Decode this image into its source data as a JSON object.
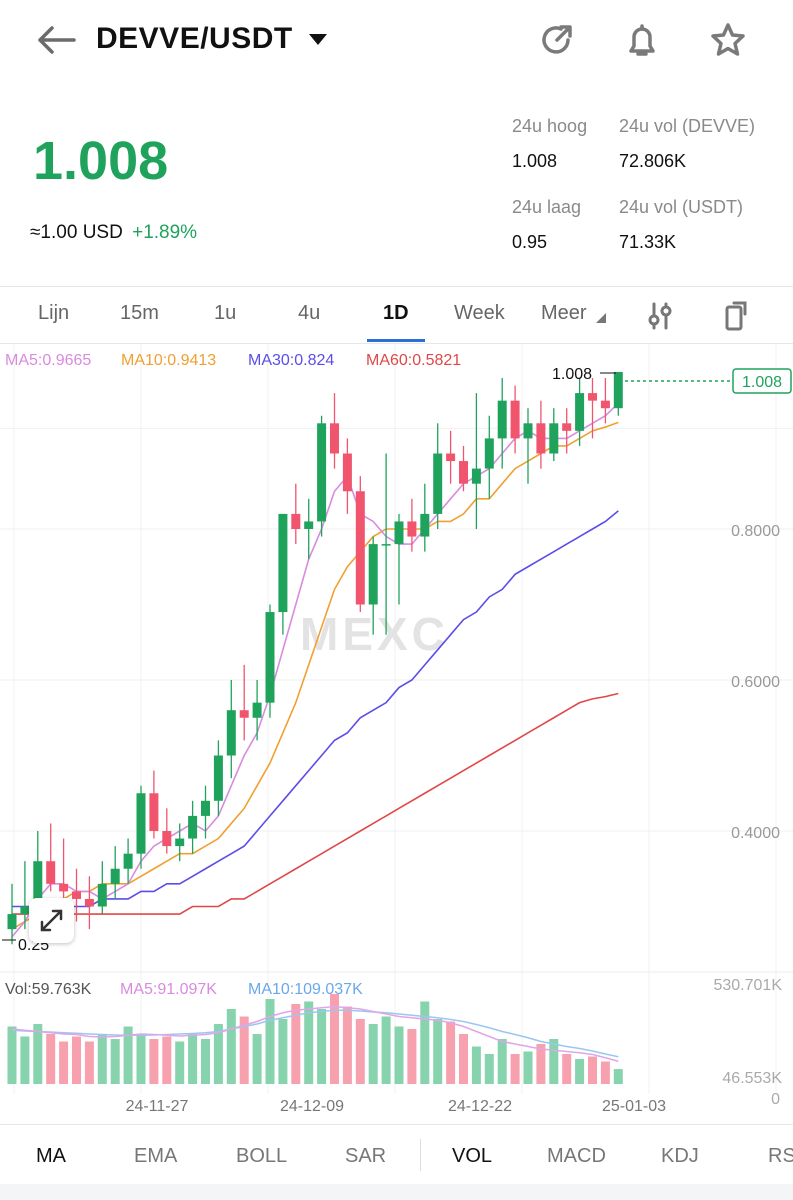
{
  "header": {
    "pair": "DEVVE/USDT"
  },
  "price": {
    "last": "1.008",
    "usd_prefix": "≈1.00",
    "usd_unit": "USD",
    "change_pct": "+1.89%"
  },
  "stats": {
    "high_label": "24u hoog",
    "high_value": "1.008",
    "vol_base_label": "24u vol (DEVVE)",
    "vol_base_value": "72.806K",
    "low_label": "24u laag",
    "low_value": "0.95",
    "vol_quote_label": "24u vol  (USDT)",
    "vol_quote_value": "71.33K"
  },
  "timeframes": [
    "Lijn",
    "15m",
    "1u",
    "4u",
    "1D",
    "Week",
    "Meer"
  ],
  "active_timeframe": "1D",
  "ma_legend": {
    "ma5": "MA5:0.9665",
    "ma10": "MA10:0.9413",
    "ma30": "MA30:0.824",
    "ma60": "MA60:0.5821"
  },
  "vol_legend": {
    "vol": "Vol:59.763K",
    "ma5": "MA5:91.097K",
    "ma10": "MA10:109.037K"
  },
  "colors": {
    "up": "#1fa35c",
    "down": "#f0556d",
    "ma5": "#d98be0",
    "ma10": "#f0a030",
    "ma30": "#5b4de8",
    "ma60": "#e04848"
  },
  "price_axis": [
    "0.8000",
    "0.6000",
    "0.4000"
  ],
  "vol_axis": [
    "530.701K",
    "46.553K",
    "0"
  ],
  "current_price_tag": "1.008",
  "high_marker": "1.008",
  "low_marker": "0.25",
  "watermark": "MEXC",
  "date_axis": [
    "24-11-27",
    "24-12-09",
    "24-12-22",
    "25-01-03"
  ],
  "indicators": [
    "MA",
    "EMA",
    "BOLL",
    "SAR",
    "VOL",
    "MACD",
    "KDJ",
    "RS"
  ],
  "active_indicators": [
    "MA",
    "VOL"
  ],
  "chart_data": {
    "type": "candlestick",
    "y_axis_ticks": [
      0.4,
      0.6,
      0.8
    ],
    "candles": [
      {
        "o": 0.27,
        "h": 0.33,
        "l": 0.25,
        "c": 0.29
      },
      {
        "o": 0.29,
        "h": 0.36,
        "l": 0.27,
        "c": 0.3
      },
      {
        "o": 0.3,
        "h": 0.4,
        "l": 0.28,
        "c": 0.36
      },
      {
        "o": 0.36,
        "h": 0.41,
        "l": 0.32,
        "c": 0.33
      },
      {
        "o": 0.33,
        "h": 0.39,
        "l": 0.3,
        "c": 0.32
      },
      {
        "o": 0.32,
        "h": 0.35,
        "l": 0.28,
        "c": 0.31
      },
      {
        "o": 0.31,
        "h": 0.34,
        "l": 0.27,
        "c": 0.3
      },
      {
        "o": 0.3,
        "h": 0.36,
        "l": 0.29,
        "c": 0.33
      },
      {
        "o": 0.33,
        "h": 0.38,
        "l": 0.31,
        "c": 0.35
      },
      {
        "o": 0.35,
        "h": 0.39,
        "l": 0.33,
        "c": 0.37
      },
      {
        "o": 0.37,
        "h": 0.46,
        "l": 0.35,
        "c": 0.45
      },
      {
        "o": 0.45,
        "h": 0.48,
        "l": 0.39,
        "c": 0.4
      },
      {
        "o": 0.4,
        "h": 0.43,
        "l": 0.37,
        "c": 0.38
      },
      {
        "o": 0.38,
        "h": 0.41,
        "l": 0.36,
        "c": 0.39
      },
      {
        "o": 0.39,
        "h": 0.44,
        "l": 0.37,
        "c": 0.42
      },
      {
        "o": 0.42,
        "h": 0.46,
        "l": 0.39,
        "c": 0.44
      },
      {
        "o": 0.44,
        "h": 0.52,
        "l": 0.42,
        "c": 0.5
      },
      {
        "o": 0.5,
        "h": 0.6,
        "l": 0.47,
        "c": 0.56
      },
      {
        "o": 0.56,
        "h": 0.62,
        "l": 0.52,
        "c": 0.55
      },
      {
        "o": 0.55,
        "h": 0.6,
        "l": 0.52,
        "c": 0.57
      },
      {
        "o": 0.57,
        "h": 0.7,
        "l": 0.55,
        "c": 0.69
      },
      {
        "o": 0.69,
        "h": 0.82,
        "l": 0.66,
        "c": 0.82
      },
      {
        "o": 0.82,
        "h": 0.86,
        "l": 0.78,
        "c": 0.8
      },
      {
        "o": 0.8,
        "h": 0.84,
        "l": 0.76,
        "c": 0.81
      },
      {
        "o": 0.81,
        "h": 0.95,
        "l": 0.79,
        "c": 0.94
      },
      {
        "o": 0.94,
        "h": 0.98,
        "l": 0.88,
        "c": 0.9
      },
      {
        "o": 0.9,
        "h": 0.92,
        "l": 0.82,
        "c": 0.85
      },
      {
        "o": 0.85,
        "h": 0.87,
        "l": 0.69,
        "c": 0.7
      },
      {
        "o": 0.7,
        "h": 0.79,
        "l": 0.66,
        "c": 0.78
      },
      {
        "o": 0.78,
        "h": 0.9,
        "l": 0.66,
        "c": 0.78
      },
      {
        "o": 0.78,
        "h": 0.82,
        "l": 0.7,
        "c": 0.81
      },
      {
        "o": 0.81,
        "h": 0.84,
        "l": 0.77,
        "c": 0.79
      },
      {
        "o": 0.79,
        "h": 0.86,
        "l": 0.77,
        "c": 0.82
      },
      {
        "o": 0.82,
        "h": 0.94,
        "l": 0.8,
        "c": 0.9
      },
      {
        "o": 0.9,
        "h": 0.93,
        "l": 0.86,
        "c": 0.89
      },
      {
        "o": 0.89,
        "h": 0.91,
        "l": 0.85,
        "c": 0.86
      },
      {
        "o": 0.86,
        "h": 0.98,
        "l": 0.8,
        "c": 0.88
      },
      {
        "o": 0.88,
        "h": 0.95,
        "l": 0.84,
        "c": 0.92
      },
      {
        "o": 0.92,
        "h": 1.0,
        "l": 0.88,
        "c": 0.97
      },
      {
        "o": 0.97,
        "h": 0.99,
        "l": 0.9,
        "c": 0.92
      },
      {
        "o": 0.92,
        "h": 0.96,
        "l": 0.86,
        "c": 0.94
      },
      {
        "o": 0.94,
        "h": 0.97,
        "l": 0.88,
        "c": 0.9
      },
      {
        "o": 0.9,
        "h": 0.96,
        "l": 0.89,
        "c": 0.94
      },
      {
        "o": 0.94,
        "h": 0.96,
        "l": 0.9,
        "c": 0.93
      },
      {
        "o": 0.93,
        "h": 1.0,
        "l": 0.91,
        "c": 0.98
      },
      {
        "o": 0.98,
        "h": 1.0,
        "l": 0.92,
        "c": 0.97
      },
      {
        "o": 0.97,
        "h": 1.0,
        "l": 0.94,
        "c": 0.96
      },
      {
        "o": 0.96,
        "h": 1.008,
        "l": 0.95,
        "c": 1.008
      }
    ],
    "ma5": [
      0.26,
      0.28,
      0.31,
      0.33,
      0.33,
      0.32,
      0.32,
      0.31,
      0.32,
      0.33,
      0.36,
      0.38,
      0.39,
      0.4,
      0.41,
      0.4,
      0.42,
      0.46,
      0.5,
      0.53,
      0.58,
      0.64,
      0.7,
      0.76,
      0.8,
      0.85,
      0.87,
      0.82,
      0.81,
      0.79,
      0.78,
      0.78,
      0.8,
      0.82,
      0.84,
      0.86,
      0.87,
      0.88,
      0.9,
      0.92,
      0.93,
      0.92,
      0.92,
      0.92,
      0.93,
      0.94,
      0.95,
      0.9665
    ],
    "ma10": [
      0.27,
      0.28,
      0.29,
      0.3,
      0.31,
      0.32,
      0.32,
      0.33,
      0.33,
      0.33,
      0.34,
      0.35,
      0.36,
      0.37,
      0.37,
      0.38,
      0.39,
      0.41,
      0.43,
      0.46,
      0.49,
      0.53,
      0.57,
      0.62,
      0.67,
      0.72,
      0.75,
      0.77,
      0.79,
      0.8,
      0.8,
      0.8,
      0.8,
      0.81,
      0.81,
      0.82,
      0.84,
      0.84,
      0.86,
      0.88,
      0.89,
      0.9,
      0.91,
      0.91,
      0.92,
      0.93,
      0.935,
      0.9413
    ],
    "ma30": [
      0.3,
      0.3,
      0.3,
      0.3,
      0.3,
      0.3,
      0.3,
      0.31,
      0.31,
      0.31,
      0.32,
      0.32,
      0.33,
      0.33,
      0.34,
      0.35,
      0.36,
      0.37,
      0.38,
      0.4,
      0.42,
      0.44,
      0.46,
      0.48,
      0.5,
      0.52,
      0.53,
      0.55,
      0.56,
      0.57,
      0.59,
      0.6,
      0.62,
      0.64,
      0.66,
      0.68,
      0.69,
      0.71,
      0.72,
      0.74,
      0.75,
      0.76,
      0.77,
      0.78,
      0.79,
      0.8,
      0.81,
      0.824
    ],
    "ma60": [
      0.29,
      0.29,
      0.29,
      0.29,
      0.29,
      0.29,
      0.29,
      0.29,
      0.29,
      0.29,
      0.29,
      0.29,
      0.29,
      0.29,
      0.3,
      0.3,
      0.3,
      0.31,
      0.31,
      0.32,
      0.33,
      0.34,
      0.35,
      0.36,
      0.37,
      0.38,
      0.39,
      0.4,
      0.41,
      0.42,
      0.43,
      0.44,
      0.45,
      0.46,
      0.47,
      0.48,
      0.49,
      0.5,
      0.51,
      0.52,
      0.53,
      0.54,
      0.55,
      0.56,
      0.57,
      0.575,
      0.578,
      0.5821
    ],
    "volumes": [
      230,
      190,
      240,
      200,
      170,
      190,
      170,
      200,
      180,
      230,
      200,
      180,
      190,
      170,
      200,
      180,
      240,
      300,
      270,
      200,
      340,
      260,
      320,
      330,
      300,
      360,
      310,
      260,
      240,
      270,
      230,
      220,
      330,
      260,
      250,
      200,
      150,
      120,
      180,
      120,
      130,
      160,
      180,
      120,
      100,
      110,
      90,
      59.763
    ],
    "vol_ma5": [
      220,
      215,
      210,
      205,
      200,
      198,
      190,
      188,
      190,
      195,
      200,
      198,
      195,
      192,
      195,
      198,
      205,
      220,
      235,
      250,
      270,
      285,
      295,
      300,
      305,
      310,
      305,
      300,
      290,
      280,
      270,
      265,
      260,
      255,
      245,
      230,
      210,
      190,
      170,
      160,
      150,
      140,
      135,
      130,
      125,
      118,
      105,
      91.097
    ],
    "vol_ma10": [
      215,
      212,
      210,
      208,
      205,
      203,
      200,
      198,
      196,
      195,
      195,
      196,
      198,
      200,
      202,
      205,
      210,
      220,
      230,
      240,
      255,
      265,
      275,
      285,
      290,
      295,
      295,
      292,
      288,
      285,
      280,
      275,
      270,
      265,
      258,
      250,
      238,
      225,
      210,
      198,
      185,
      170,
      160,
      150,
      142,
      132,
      120,
      109.037
    ]
  }
}
